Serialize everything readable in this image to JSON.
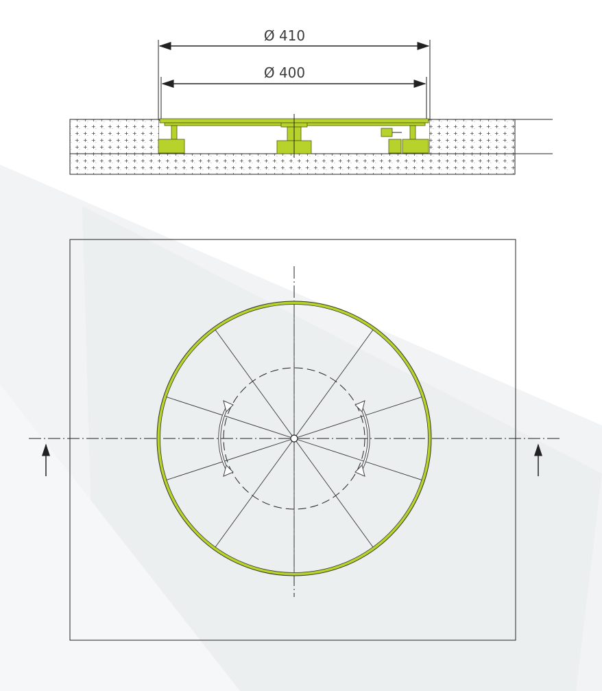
{
  "dimensions": {
    "outer_label": "Ø 410",
    "inner_label": "Ø 400"
  },
  "colors": {
    "platform": "#b6d22b",
    "line": "#222222",
    "background_shape": "#eef0f2"
  },
  "plan_view": {
    "spoke_count": 10,
    "section_arrows": [
      "left",
      "right"
    ]
  }
}
